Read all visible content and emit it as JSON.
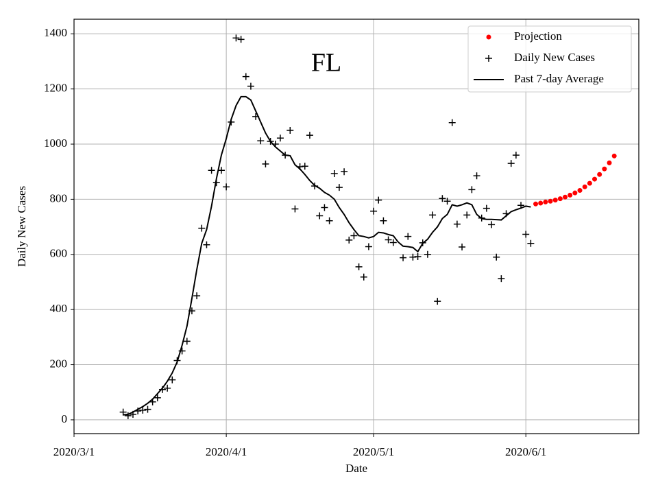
{
  "chart_data": {
    "type": "line",
    "title": "FL",
    "x_label": "Date",
    "y_label": "Daily New Cases",
    "xlim": [
      "2020/3/1",
      "2020/6/24"
    ],
    "xticks": [
      "2020/3/1",
      "2020/4/1",
      "2020/5/1",
      "2020/6/1"
    ],
    "ylim": [
      -50,
      1453
    ],
    "yticks": [
      0,
      200,
      400,
      600,
      800,
      1000,
      1200,
      1400
    ],
    "grid": true,
    "legend": "upper right",
    "series": [
      {
        "name": "Projection",
        "type": "dots",
        "color": "#ff0000",
        "x": [
          "2020/6/3",
          "2020/6/4",
          "2020/6/5",
          "2020/6/6",
          "2020/6/7",
          "2020/6/8",
          "2020/6/9",
          "2020/6/10",
          "2020/6/11",
          "2020/6/12",
          "2020/6/13",
          "2020/6/14",
          "2020/6/15",
          "2020/6/16",
          "2020/6/17",
          "2020/6/18",
          "2020/6/19"
        ],
        "values": [
          783,
          786,
          790,
          793,
          797,
          802,
          808,
          815,
          823,
          832,
          845,
          858,
          873,
          890,
          910,
          932,
          957
        ]
      },
      {
        "name": "Daily New Cases",
        "type": "plus",
        "color": "#000000",
        "x": [
          "2020/3/11",
          "2020/3/12",
          "2020/3/13",
          "2020/3/14",
          "2020/3/15",
          "2020/3/16",
          "2020/3/17",
          "2020/3/18",
          "2020/3/19",
          "2020/3/20",
          "2020/3/21",
          "2020/3/22",
          "2020/3/23",
          "2020/3/24",
          "2020/3/25",
          "2020/3/26",
          "2020/3/27",
          "2020/3/28",
          "2020/3/29",
          "2020/3/30",
          "2020/3/31",
          "2020/4/1",
          "2020/4/2",
          "2020/4/3",
          "2020/4/4",
          "2020/4/5",
          "2020/4/6",
          "2020/4/7",
          "2020/4/8",
          "2020/4/9",
          "2020/4/10",
          "2020/4/11",
          "2020/4/12",
          "2020/4/13",
          "2020/4/14",
          "2020/4/15",
          "2020/4/16",
          "2020/4/17",
          "2020/4/18",
          "2020/4/19",
          "2020/4/20",
          "2020/4/21",
          "2020/4/22",
          "2020/4/23",
          "2020/4/24",
          "2020/4/25",
          "2020/4/26",
          "2020/4/27",
          "2020/4/28",
          "2020/4/29",
          "2020/4/30",
          "2020/5/1",
          "2020/5/2",
          "2020/5/3",
          "2020/5/4",
          "2020/5/5",
          "2020/5/7",
          "2020/5/8",
          "2020/5/9",
          "2020/5/10",
          "2020/5/11",
          "2020/5/12",
          "2020/5/13",
          "2020/5/14",
          "2020/5/15",
          "2020/5/16",
          "2020/5/17",
          "2020/5/18",
          "2020/5/19",
          "2020/5/20",
          "2020/5/21",
          "2020/5/22",
          "2020/5/23",
          "2020/5/24",
          "2020/5/25",
          "2020/5/26",
          "2020/5/27",
          "2020/5/28",
          "2020/5/29",
          "2020/5/30",
          "2020/5/31",
          "2020/6/1",
          "2020/6/2"
        ],
        "values": [
          28,
          15,
          20,
          32,
          35,
          38,
          65,
          80,
          110,
          115,
          145,
          215,
          250,
          285,
          395,
          450,
          695,
          635,
          905,
          860,
          905,
          845,
          1080,
          1385,
          1380,
          1245,
          1210,
          1100,
          1012,
          928,
          1010,
          1000,
          1022,
          960,
          1050,
          765,
          918,
          920,
          1032,
          848,
          740,
          770,
          722,
          893,
          843,
          900,
          652,
          668,
          555,
          518,
          628,
          757,
          797,
          722,
          653,
          643,
          588,
          665,
          590,
          592,
          642,
          600,
          743,
          430,
          803,
          793,
          1078,
          710,
          627,
          743,
          835,
          885,
          732,
          767,
          708,
          590,
          512,
          748,
          930,
          960,
          778,
          673,
          640
        ]
      },
      {
        "name": "Past 7-day Average",
        "type": "line",
        "color": "#000000",
        "x": [
          "2020/3/11",
          "2020/3/12",
          "2020/3/13",
          "2020/3/14",
          "2020/3/15",
          "2020/3/16",
          "2020/3/17",
          "2020/3/18",
          "2020/3/19",
          "2020/3/20",
          "2020/3/21",
          "2020/3/22",
          "2020/3/23",
          "2020/3/24",
          "2020/3/25",
          "2020/3/26",
          "2020/3/27",
          "2020/3/28",
          "2020/3/29",
          "2020/3/30",
          "2020/3/31",
          "2020/4/1",
          "2020/4/2",
          "2020/4/3",
          "2020/4/4",
          "2020/4/5",
          "2020/4/6",
          "2020/4/7",
          "2020/4/8",
          "2020/4/9",
          "2020/4/10",
          "2020/4/11",
          "2020/4/12",
          "2020/4/13",
          "2020/4/14",
          "2020/4/15",
          "2020/4/16",
          "2020/4/17",
          "2020/4/18",
          "2020/4/19",
          "2020/4/20",
          "2020/4/21",
          "2020/4/22",
          "2020/4/23",
          "2020/4/24",
          "2020/4/25",
          "2020/4/26",
          "2020/4/27",
          "2020/4/28",
          "2020/4/29",
          "2020/4/30",
          "2020/5/1",
          "2020/5/2",
          "2020/5/3",
          "2020/5/4",
          "2020/5/5",
          "2020/5/6",
          "2020/5/7",
          "2020/5/8",
          "2020/5/9",
          "2020/5/10",
          "2020/5/11",
          "2020/5/12",
          "2020/5/13",
          "2020/5/14",
          "2020/5/15",
          "2020/5/16",
          "2020/5/17",
          "2020/5/18",
          "2020/5/19",
          "2020/5/20",
          "2020/5/21",
          "2020/5/22",
          "2020/5/23",
          "2020/5/24",
          "2020/5/25",
          "2020/5/26",
          "2020/5/27",
          "2020/5/28",
          "2020/5/29",
          "2020/5/30",
          "2020/5/31",
          "2020/6/1",
          "2020/6/2"
        ],
        "values": [
          18,
          20,
          28,
          38,
          48,
          60,
          75,
          95,
          115,
          140,
          170,
          210,
          270,
          340,
          440,
          545,
          640,
          690,
          775,
          875,
          960,
          1020,
          1090,
          1140,
          1172,
          1172,
          1160,
          1120,
          1080,
          1040,
          1010,
          990,
          975,
          960,
          958,
          925,
          910,
          890,
          868,
          850,
          840,
          825,
          815,
          800,
          770,
          745,
          715,
          690,
          668,
          665,
          660,
          665,
          680,
          678,
          672,
          668,
          645,
          630,
          628,
          625,
          610,
          640,
          655,
          680,
          700,
          730,
          745,
          780,
          775,
          780,
          787,
          780,
          745,
          730,
          727,
          727,
          726,
          725,
          740,
          755,
          762,
          768,
          775,
          772
        ]
      }
    ]
  }
}
